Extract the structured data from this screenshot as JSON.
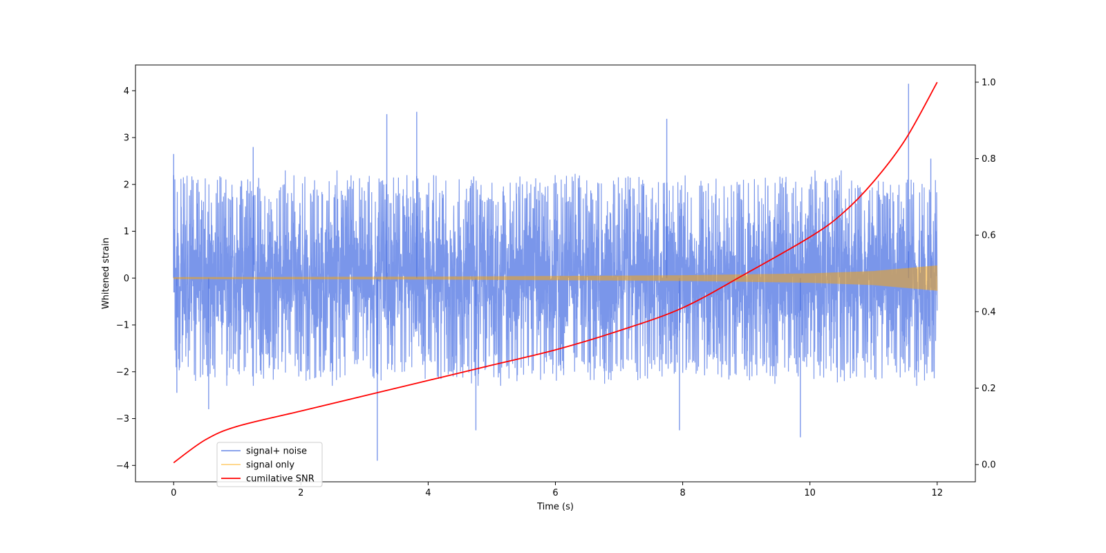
{
  "chart_data": {
    "type": "line",
    "xlabel": "Time (s)",
    "ylabel": "Whitened strain",
    "xlim": [
      -0.6,
      12.6
    ],
    "ylim": [
      -4.35,
      4.55
    ],
    "y2lim": [
      -0.045,
      1.045
    ],
    "xticks": [
      0,
      2,
      4,
      6,
      8,
      10,
      12
    ],
    "yticks": [
      -4,
      -3,
      -2,
      -1,
      0,
      1,
      2,
      3,
      4
    ],
    "y2ticks": [
      0.0,
      0.2,
      0.4,
      0.6,
      0.8,
      1.0
    ],
    "grid": false,
    "legend_position": "lower-left",
    "series": [
      {
        "name": "signal+ noise",
        "color": "#4169e1",
        "alpha": 0.7,
        "axis": "left",
        "x_range": [
          0,
          12
        ],
        "typical_amplitude": [
          -2.0,
          2.0
        ],
        "peaks": [
          {
            "x": 0.0,
            "y": 2.65
          },
          {
            "x": 0.05,
            "y": -2.45
          },
          {
            "x": 0.55,
            "y": -2.8
          },
          {
            "x": 1.25,
            "y": 2.8
          },
          {
            "x": 3.2,
            "y": -3.9
          },
          {
            "x": 3.35,
            "y": 3.5
          },
          {
            "x": 3.82,
            "y": 3.55
          },
          {
            "x": 4.75,
            "y": -3.25
          },
          {
            "x": 7.75,
            "y": 3.4
          },
          {
            "x": 7.95,
            "y": -3.25
          },
          {
            "x": 9.85,
            "y": -3.4
          },
          {
            "x": 11.55,
            "y": 4.15
          },
          {
            "x": 11.9,
            "y": 2.55
          }
        ]
      },
      {
        "name": "signal only",
        "color": "#ffa500",
        "alpha": 0.5,
        "axis": "left",
        "x_range": [
          0,
          12
        ],
        "envelope": [
          {
            "x": 0,
            "y": 0.02
          },
          {
            "x": 4,
            "y": 0.03
          },
          {
            "x": 8,
            "y": 0.06
          },
          {
            "x": 10,
            "y": 0.1
          },
          {
            "x": 11,
            "y": 0.15
          },
          {
            "x": 12,
            "y": 0.27
          }
        ]
      },
      {
        "name": "cumilative SNR",
        "color": "#ff0000",
        "axis": "right",
        "points": [
          {
            "x": 0.0,
            "y": 0.005
          },
          {
            "x": 0.5,
            "y": 0.065
          },
          {
            "x": 1.0,
            "y": 0.1
          },
          {
            "x": 2.0,
            "y": 0.14
          },
          {
            "x": 3.0,
            "y": 0.18
          },
          {
            "x": 4.0,
            "y": 0.22
          },
          {
            "x": 5.0,
            "y": 0.26
          },
          {
            "x": 6.0,
            "y": 0.3
          },
          {
            "x": 7.0,
            "y": 0.35
          },
          {
            "x": 8.0,
            "y": 0.41
          },
          {
            "x": 9.0,
            "y": 0.5
          },
          {
            "x": 10.0,
            "y": 0.595
          },
          {
            "x": 10.5,
            "y": 0.655
          },
          {
            "x": 11.0,
            "y": 0.74
          },
          {
            "x": 11.5,
            "y": 0.85
          },
          {
            "x": 12.0,
            "y": 1.0
          }
        ]
      }
    ]
  }
}
